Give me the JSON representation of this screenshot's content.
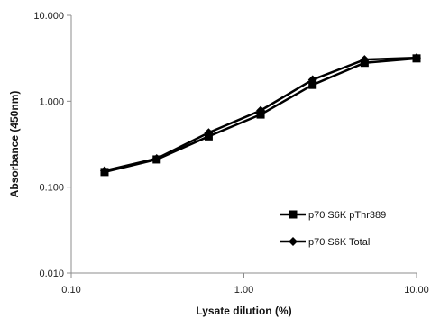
{
  "chart_data": {
    "type": "line",
    "title": "",
    "xlabel": "Lysate dilution (%)",
    "ylabel": "Absorbance (450nm)",
    "x_scale": "log",
    "y_scale": "log",
    "xlim": [
      0.1,
      10
    ],
    "ylim": [
      0.01,
      10
    ],
    "x_ticks": [
      0.1,
      1,
      10
    ],
    "x_tick_labels": [
      "0.10",
      "1.00",
      "10.00"
    ],
    "y_ticks": [
      0.01,
      0.1,
      1,
      10
    ],
    "y_tick_labels": [
      "0.010",
      "0.100",
      "1.000",
      "10.000"
    ],
    "grid": false,
    "legend_position": "center-right",
    "series": [
      {
        "name": "p70 S6K pThr389",
        "marker": "square",
        "color": "#000000",
        "x": [
          0.156,
          0.3125,
          0.625,
          1.25,
          2.5,
          5,
          10
        ],
        "y": [
          0.15,
          0.21,
          0.39,
          0.7,
          1.55,
          2.8,
          3.15
        ]
      },
      {
        "name": "p70 S6K Total",
        "marker": "diamond",
        "color": "#000000",
        "x": [
          0.156,
          0.3125,
          0.625,
          1.25,
          2.5,
          5,
          10
        ],
        "y": [
          0.155,
          0.215,
          0.43,
          0.78,
          1.78,
          3.05,
          3.2
        ]
      }
    ]
  }
}
